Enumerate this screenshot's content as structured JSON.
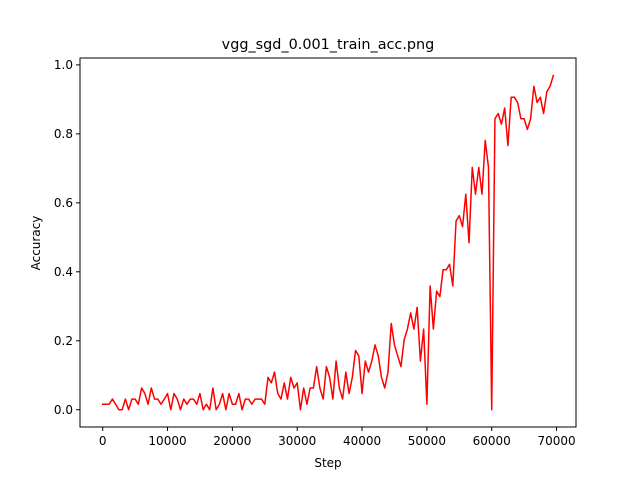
{
  "chart_data": {
    "type": "line",
    "title": "vgg_sgd_0.001_train_acc.png",
    "xlabel": "Step",
    "ylabel": "Accuracy",
    "xlim": [
      -3500,
      73000
    ],
    "ylim": [
      -0.05,
      1.02
    ],
    "xticks": [
      0,
      10000,
      20000,
      30000,
      40000,
      50000,
      60000,
      70000
    ],
    "yticks": [
      0.0,
      0.2,
      0.4,
      0.6,
      0.8,
      1.0
    ],
    "xtick_labels": [
      "0",
      "10000",
      "20000",
      "30000",
      "40000",
      "50000",
      "60000",
      "70000"
    ],
    "ytick_labels": [
      "0.0",
      "0.2",
      "0.4",
      "0.6",
      "0.8",
      "1.0"
    ],
    "grid": false,
    "legend": "none",
    "series": [
      {
        "color": "#ff0000",
        "x": [
          0,
          500,
          1000,
          1500,
          2000,
          2500,
          3000,
          3500,
          4000,
          4500,
          5000,
          5500,
          6000,
          6500,
          7000,
          7500,
          8000,
          8500,
          9000,
          9500,
          10000,
          10500,
          11000,
          11500,
          12000,
          12500,
          13000,
          13500,
          14000,
          14500,
          15000,
          15500,
          16000,
          16500,
          17000,
          17500,
          18000,
          18500,
          19000,
          19500,
          20000,
          20500,
          21000,
          21500,
          22000,
          22500,
          23000,
          23500,
          24000,
          24500,
          25000,
          25500,
          26000,
          26500,
          27000,
          27500,
          28000,
          28500,
          29000,
          29500,
          30000,
          30500,
          31000,
          31500,
          32000,
          32500,
          33000,
          33500,
          34000,
          34500,
          35000,
          35500,
          36000,
          36500,
          37000,
          37500,
          38000,
          38500,
          39000,
          39500,
          40000,
          40500,
          41000,
          41500,
          42000,
          42500,
          43000,
          43500,
          44000,
          44500,
          45000,
          45500,
          46000,
          46500,
          47000,
          47500,
          48000,
          48500,
          49000,
          49500,
          50000,
          50500,
          51000,
          51500,
          52000,
          52500,
          53000,
          53500,
          54000,
          54500,
          55000,
          55500,
          56000,
          56500,
          57000,
          57500,
          58000,
          58500,
          59000,
          59500,
          60000,
          60500,
          61000,
          61500,
          62000,
          62500,
          63000,
          63500,
          64000,
          64500,
          65000,
          65500,
          66000,
          66500,
          67000,
          67500,
          68000,
          68500,
          69000,
          69500
        ],
        "y": [
          0.016,
          0.016,
          0.016,
          0.031,
          0.016,
          0.0,
          0.0,
          0.031,
          0.0,
          0.031,
          0.031,
          0.016,
          0.063,
          0.047,
          0.016,
          0.063,
          0.031,
          0.031,
          0.016,
          0.031,
          0.047,
          0.0,
          0.047,
          0.031,
          0.0,
          0.031,
          0.016,
          0.031,
          0.031,
          0.016,
          0.047,
          0.0,
          0.016,
          0.0,
          0.063,
          0.0,
          0.016,
          0.047,
          0.0,
          0.047,
          0.016,
          0.016,
          0.047,
          0.0,
          0.031,
          0.031,
          0.016,
          0.031,
          0.031,
          0.031,
          0.016,
          0.094,
          0.078,
          0.109,
          0.047,
          0.031,
          0.078,
          0.031,
          0.094,
          0.063,
          0.078,
          0.0,
          0.063,
          0.016,
          0.063,
          0.063,
          0.125,
          0.063,
          0.031,
          0.125,
          0.094,
          0.031,
          0.141,
          0.063,
          0.031,
          0.109,
          0.047,
          0.094,
          0.172,
          0.156,
          0.047,
          0.141,
          0.109,
          0.141,
          0.188,
          0.156,
          0.094,
          0.063,
          0.109,
          0.25,
          0.188,
          0.156,
          0.125,
          0.203,
          0.234,
          0.281,
          0.234,
          0.297,
          0.141,
          0.234,
          0.016,
          0.359,
          0.234,
          0.344,
          0.328,
          0.406,
          0.406,
          0.422,
          0.359,
          0.547,
          0.563,
          0.531,
          0.625,
          0.484,
          0.703,
          0.625,
          0.703,
          0.625,
          0.781,
          0.703,
          0.0,
          0.844,
          0.859,
          0.828,
          0.875,
          0.766,
          0.906,
          0.906,
          0.891,
          0.844,
          0.844,
          0.813,
          0.844,
          0.938,
          0.891,
          0.906,
          0.859,
          0.922,
          0.938,
          0.969
        ]
      }
    ]
  }
}
